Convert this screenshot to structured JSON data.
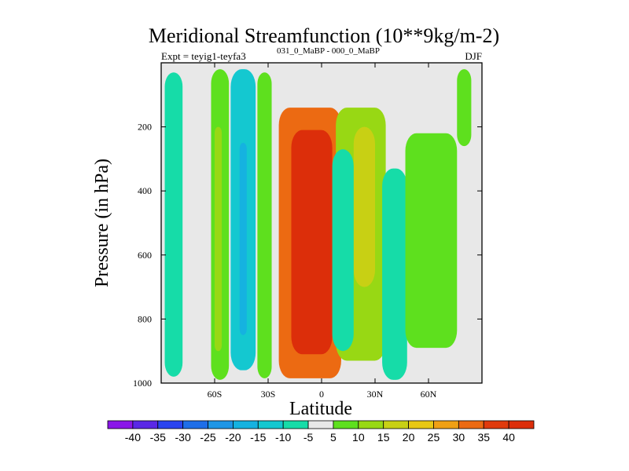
{
  "chart_data": {
    "type": "heatmap",
    "title": "Meridional Streamfunction (10**9kg/m-2)",
    "subtitle_left": "Expt = teyig1-teyfa3",
    "subtitle_left_sup": "031_0_MaBP - 000_0_MaBP",
    "subtitle_right": "DJF",
    "xlabel": "Latitude",
    "ylabel": "Pressure (in hPa)",
    "xlim": [
      -90,
      90
    ],
    "ylim": [
      1000,
      0
    ],
    "x_ticks": [
      {
        "value": -60,
        "label": "60S"
      },
      {
        "value": -30,
        "label": "30S"
      },
      {
        "value": 0,
        "label": "0"
      },
      {
        "value": 30,
        "label": "30N"
      },
      {
        "value": 60,
        "label": "60N"
      }
    ],
    "y_ticks": [
      {
        "value": 200,
        "label": "200"
      },
      {
        "value": 400,
        "label": "400"
      },
      {
        "value": 600,
        "label": "600"
      },
      {
        "value": 800,
        "label": "800"
      },
      {
        "value": 1000,
        "label": "1000"
      }
    ],
    "colorbar": {
      "levels": [
        "-40",
        "-35",
        "-30",
        "-25",
        "-20",
        "-15",
        "-10",
        "-5",
        "5",
        "10",
        "15",
        "20",
        "25",
        "30",
        "35",
        "40"
      ],
      "colors": [
        "#8a16e8",
        "#5a28e6",
        "#2a44f0",
        "#1e6ee8",
        "#1e96e6",
        "#15b2e0",
        "#14c8d0",
        "#16dca8",
        "#e8e8e8",
        "#5ee01e",
        "#98d814",
        "#c8d014",
        "#e8c814",
        "#f0a014",
        "#ec6a12",
        "#e03a0c",
        "#dc2e0a"
      ]
    },
    "regions": [
      {
        "name": "band-70s",
        "value": -7,
        "lat": [
          -88,
          -78
        ],
        "p": [
          30,
          980
        ]
      },
      {
        "name": "band-57s",
        "value": 8,
        "lat": [
          -62,
          -52
        ],
        "p": [
          20,
          990
        ]
      },
      {
        "name": "band-57s-inner",
        "value": 12,
        "lat": [
          -60,
          -56
        ],
        "p": [
          200,
          900
        ]
      },
      {
        "name": "band-45s",
        "value": -12,
        "lat": [
          -51,
          -37
        ],
        "p": [
          20,
          960
        ]
      },
      {
        "name": "band-45s-core",
        "value": -18,
        "lat": [
          -46,
          -42
        ],
        "p": [
          250,
          850
        ]
      },
      {
        "name": "band-32s",
        "value": 6,
        "lat": [
          -36,
          -28
        ],
        "p": [
          30,
          985
        ]
      },
      {
        "name": "hadley-cell-south",
        "value": 30,
        "lat": [
          -24,
          11
        ],
        "p": [
          140,
          985
        ]
      },
      {
        "name": "hadley-cell-south-core",
        "value": 40,
        "lat": [
          -17,
          6
        ],
        "p": [
          210,
          910
        ]
      },
      {
        "name": "cell-15n-outer",
        "value": 10,
        "lat": [
          8,
          36
        ],
        "p": [
          140,
          930
        ]
      },
      {
        "name": "cell-15n-inner",
        "value": 18,
        "lat": [
          18,
          30
        ],
        "p": [
          200,
          700
        ]
      },
      {
        "name": "band-8n-negative",
        "value": -8,
        "lat": [
          6,
          18
        ],
        "p": [
          270,
          900
        ]
      },
      {
        "name": "band-40n",
        "value": -8,
        "lat": [
          34,
          48
        ],
        "p": [
          330,
          990
        ]
      },
      {
        "name": "band-50n",
        "value": 7,
        "lat": [
          47,
          76
        ],
        "p": [
          220,
          890
        ]
      },
      {
        "name": "band-78n",
        "value": 6,
        "lat": [
          76,
          84
        ],
        "p": [
          20,
          260
        ]
      }
    ]
  }
}
